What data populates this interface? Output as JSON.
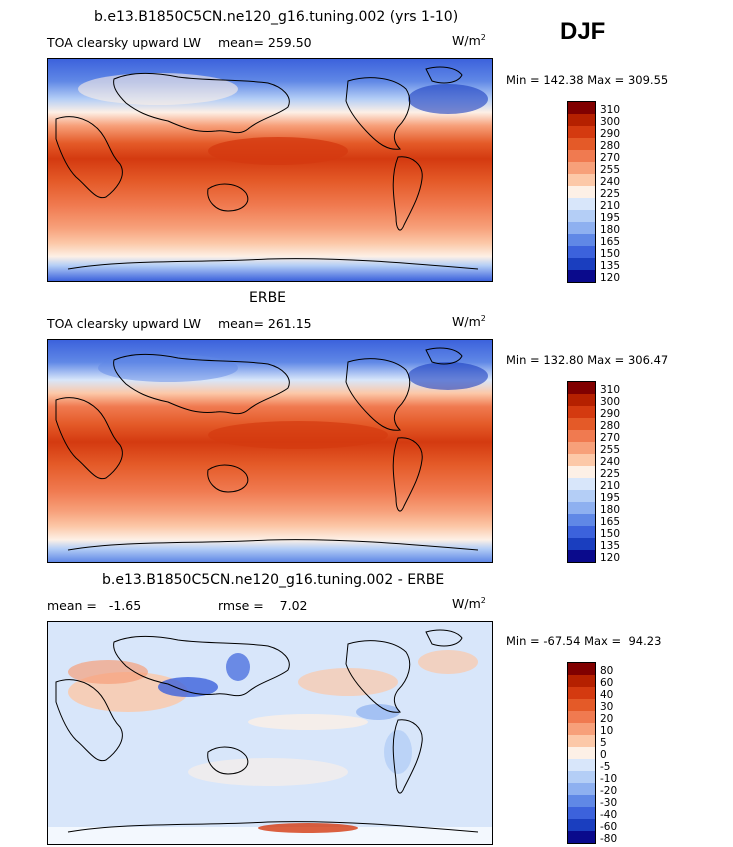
{
  "season": "DJF",
  "panels": [
    {
      "title": "b.e13.B1850C5CN.ne120_g16.tuning.002 (yrs 1-10)",
      "variable": "TOA clearsky upward LW",
      "mean_text": "mean= 259.50",
      "units_base": "W/m",
      "units_exp": "2",
      "minmax": "Min = 142.38 Max = 309.55",
      "colorbar_labels": [
        "310",
        "300",
        "290",
        "280",
        "270",
        "255",
        "240",
        "225",
        "210",
        "195",
        "180",
        "165",
        "150",
        "135",
        "120"
      ]
    },
    {
      "title": "ERBE",
      "variable": "TOA clearsky upward LW",
      "mean_text": "mean= 261.15",
      "units_base": "W/m",
      "units_exp": "2",
      "minmax": "Min = 132.80 Max = 306.47",
      "colorbar_labels": [
        "310",
        "300",
        "290",
        "280",
        "270",
        "255",
        "240",
        "225",
        "210",
        "195",
        "180",
        "165",
        "150",
        "135",
        "120"
      ]
    },
    {
      "title": "b.e13.B1850C5CN.ne120_g16.tuning.002 - ERBE",
      "mean_text": "mean =   -1.65",
      "rmse_text": "rmse =    7.02",
      "units_base": "W/m",
      "units_exp": "2",
      "minmax": "Min = -67.54 Max =  94.23",
      "colorbar_labels": [
        "80",
        "60",
        "40",
        "30",
        "20",
        "10",
        "5",
        "0",
        "-5",
        "-10",
        "-20",
        "-30",
        "-40",
        "-60",
        "-80"
      ]
    }
  ],
  "colorbar_colors": [
    "#800000",
    "#b52000",
    "#d43a10",
    "#e45a28",
    "#f07a50",
    "#f7a07a",
    "#fcc8a8",
    "#fdf0e6",
    "#d8e6fa",
    "#b4cef6",
    "#8eb0f0",
    "#6088e6",
    "#3c62dc",
    "#1a3ebf",
    "#0a0a8c"
  ]
}
